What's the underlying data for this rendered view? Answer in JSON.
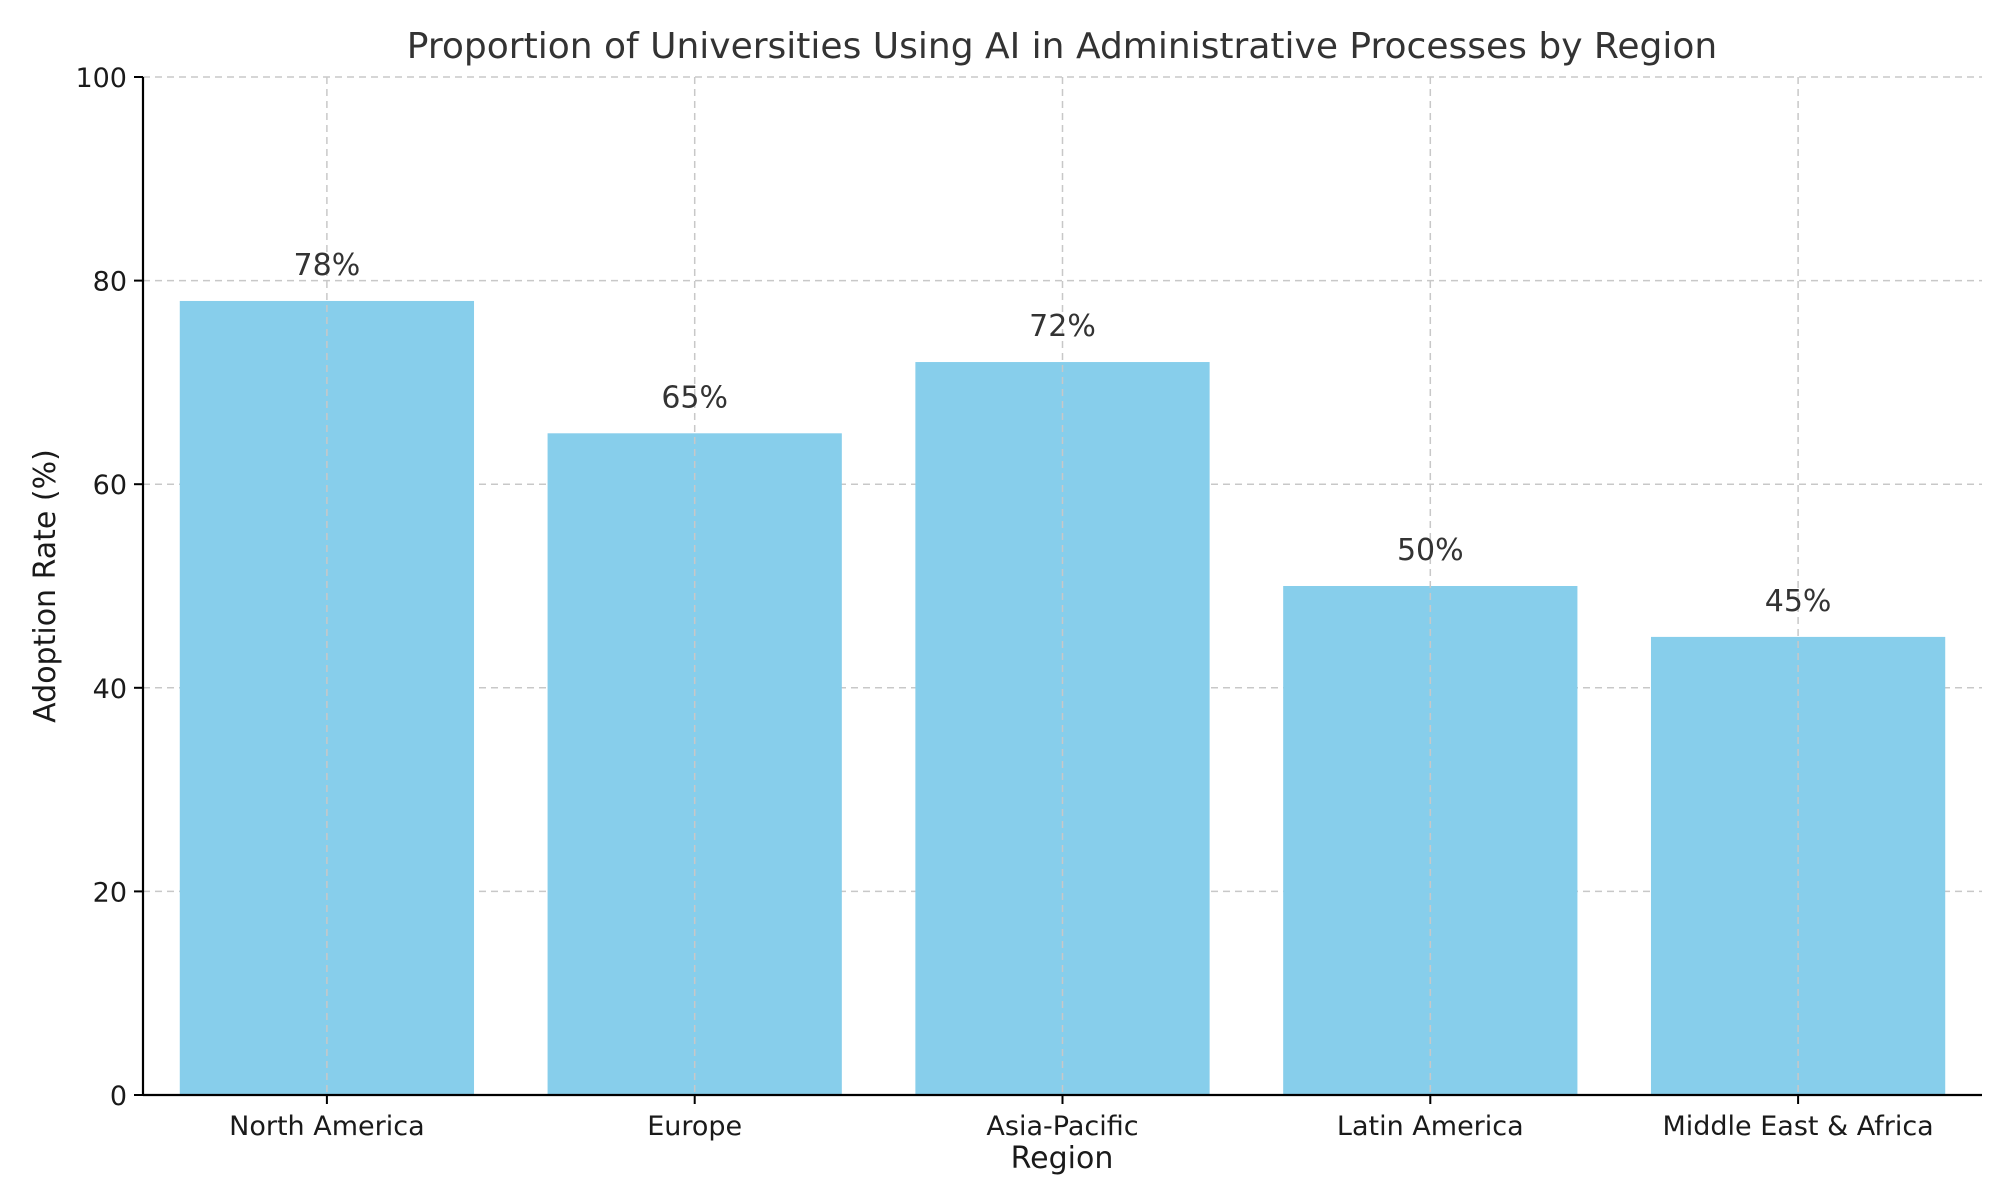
{
  "chart_data": {
    "type": "bar",
    "title": "Proportion of Universities Using AI in Administrative Processes by Region",
    "xlabel": "Region",
    "ylabel": "Adoption Rate (%)",
    "categories": [
      "North America",
      "Europe",
      "Asia-Pacific",
      "Latin America",
      "Middle East & Africa"
    ],
    "values": [
      78,
      65,
      72,
      50,
      45
    ],
    "data_labels": [
      "78%",
      "65%",
      "72%",
      "50%",
      "45%"
    ],
    "ylim": [
      0,
      100
    ],
    "yticks": [
      0,
      20,
      40,
      60,
      80,
      100
    ],
    "grid": true,
    "bar_color": "#87CEEB"
  }
}
